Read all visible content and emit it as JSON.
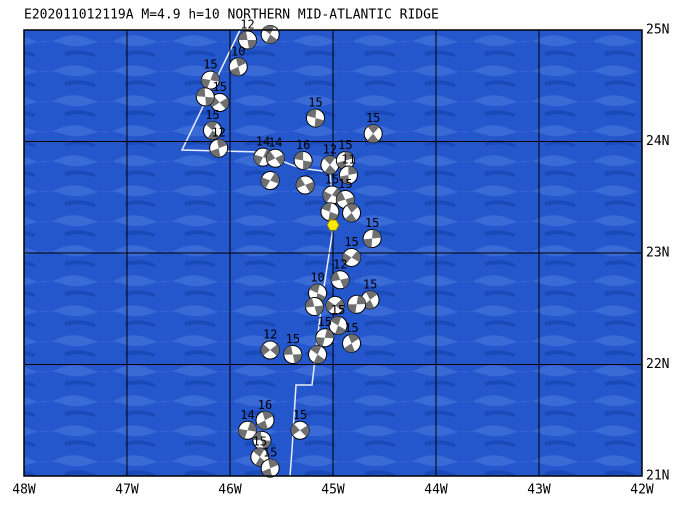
{
  "map": {
    "title": "E202011012119A M=4.9 h=10 NORTHERN MID-ATLANTIC RIDGE",
    "xlim": [
      -48,
      -42
    ],
    "ylim": [
      21,
      25
    ],
    "xticks": [
      {
        "value": -48,
        "label": "48W"
      },
      {
        "value": -47,
        "label": "47W"
      },
      {
        "value": -46,
        "label": "46W"
      },
      {
        "value": -45,
        "label": "45W"
      },
      {
        "value": -44,
        "label": "44W"
      },
      {
        "value": -43,
        "label": "43W"
      },
      {
        "value": -42,
        "label": "42W"
      }
    ],
    "yticks": [
      {
        "value": 25,
        "label": "25N"
      },
      {
        "value": 24,
        "label": "24N"
      },
      {
        "value": 23,
        "label": "23N"
      },
      {
        "value": 22,
        "label": "22N"
      },
      {
        "value": 21,
        "label": "21N"
      }
    ],
    "epicenter": {
      "lon": -45.0,
      "lat": 23.25,
      "color": "#ffe800"
    },
    "events": [
      {
        "lon": -45.83,
        "lat": 24.91,
        "depth": 12
      },
      {
        "lon": -45.61,
        "lat": 24.96,
        "depth": null
      },
      {
        "lon": -45.92,
        "lat": 24.67,
        "depth": 10
      },
      {
        "lon": -46.19,
        "lat": 24.55,
        "depth": 15
      },
      {
        "lon": -46.1,
        "lat": 24.35,
        "depth": 15
      },
      {
        "lon": -46.24,
        "lat": 24.4,
        "depth": null
      },
      {
        "lon": -46.17,
        "lat": 24.1,
        "depth": 15
      },
      {
        "lon": -46.11,
        "lat": 23.94,
        "depth": 12
      },
      {
        "lon": -45.68,
        "lat": 23.86,
        "depth": 14
      },
      {
        "lon": -45.56,
        "lat": 23.85,
        "depth": 14
      },
      {
        "lon": -45.29,
        "lat": 23.83,
        "depth": 16
      },
      {
        "lon": -45.03,
        "lat": 23.79,
        "depth": 12
      },
      {
        "lon": -44.88,
        "lat": 23.83,
        "depth": 15
      },
      {
        "lon": -45.61,
        "lat": 23.65,
        "depth": null
      },
      {
        "lon": -45.27,
        "lat": 23.61,
        "depth": null
      },
      {
        "lon": -45.17,
        "lat": 24.21,
        "depth": 15
      },
      {
        "lon": -44.61,
        "lat": 24.07,
        "depth": 15
      },
      {
        "lon": -44.85,
        "lat": 23.7,
        "depth": 11
      },
      {
        "lon": -45.01,
        "lat": 23.52,
        "depth": 15
      },
      {
        "lon": -44.88,
        "lat": 23.48,
        "depth": 15
      },
      {
        "lon": -45.03,
        "lat": 23.37,
        "depth": null
      },
      {
        "lon": -44.82,
        "lat": 23.36,
        "depth": null
      },
      {
        "lon": -44.62,
        "lat": 23.13,
        "depth": 15
      },
      {
        "lon": -44.82,
        "lat": 22.96,
        "depth": 15
      },
      {
        "lon": -44.93,
        "lat": 22.76,
        "depth": 12
      },
      {
        "lon": -45.15,
        "lat": 22.64,
        "depth": 10
      },
      {
        "lon": -44.64,
        "lat": 22.58,
        "depth": 15
      },
      {
        "lon": -44.77,
        "lat": 22.54,
        "depth": null
      },
      {
        "lon": -44.98,
        "lat": 22.53,
        "depth": null
      },
      {
        "lon": -45.18,
        "lat": 22.52,
        "depth": null
      },
      {
        "lon": -44.95,
        "lat": 22.35,
        "depth": 15
      },
      {
        "lon": -44.82,
        "lat": 22.19,
        "depth": 15
      },
      {
        "lon": -45.08,
        "lat": 22.24,
        "depth": 15
      },
      {
        "lon": -45.61,
        "lat": 22.13,
        "depth": 12
      },
      {
        "lon": -45.39,
        "lat": 22.09,
        "depth": 15
      },
      {
        "lon": -45.15,
        "lat": 22.09,
        "depth": null
      },
      {
        "lon": -45.66,
        "lat": 21.5,
        "depth": 16
      },
      {
        "lon": -45.83,
        "lat": 21.41,
        "depth": 14
      },
      {
        "lon": -45.32,
        "lat": 21.41,
        "depth": 15
      },
      {
        "lon": -45.69,
        "lat": 21.32,
        "depth": null
      },
      {
        "lon": -45.71,
        "lat": 21.17,
        "depth": 15
      },
      {
        "lon": -45.61,
        "lat": 21.07,
        "depth": 15
      }
    ]
  }
}
